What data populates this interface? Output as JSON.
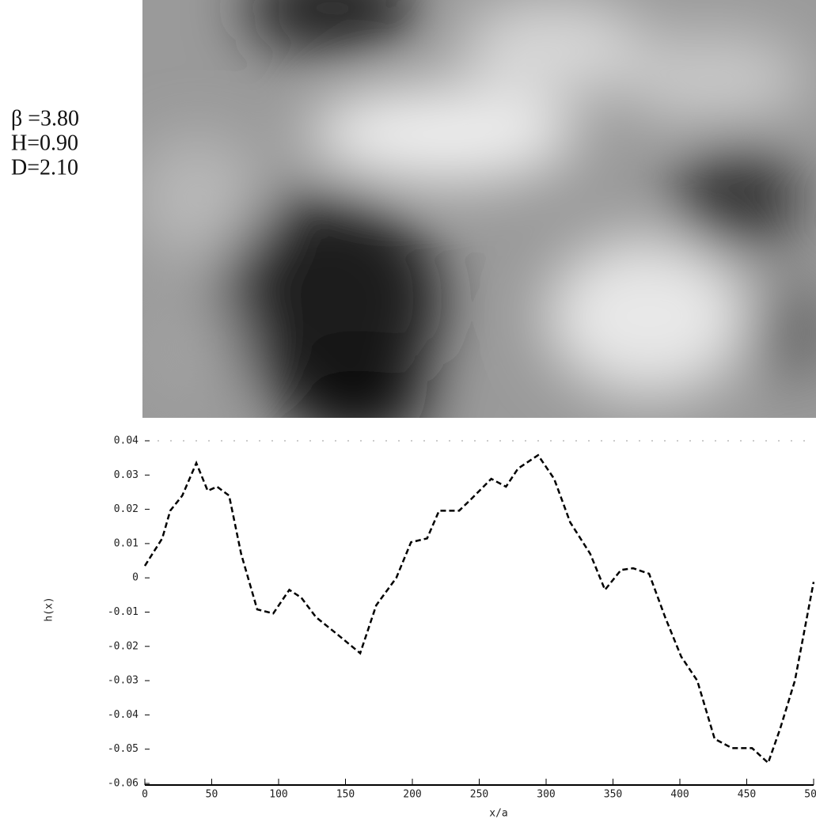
{
  "params": [
    "β =3.80",
    "H=0.90",
    "D=2.10"
  ],
  "chart_data": {
    "type": "line",
    "xlabel": "x/a",
    "ylabel": "h(x)",
    "x": [
      0,
      13,
      19,
      28,
      38.5,
      47,
      54,
      63,
      72,
      84,
      96,
      108,
      117,
      128,
      143,
      161,
      173,
      188,
      199,
      211,
      220,
      235,
      244,
      259,
      270,
      279,
      294,
      306,
      318,
      333,
      344,
      356,
      365,
      377,
      389,
      401,
      413,
      426,
      439,
      454,
      466,
      475,
      486,
      500
    ],
    "series": [
      {
        "name": "h",
        "color": "#000000",
        "values": [
          0.0035,
          0.0115,
          0.0196,
          0.024,
          0.0335,
          0.0254,
          0.0266,
          0.024,
          0.007,
          -0.0092,
          -0.0104,
          -0.0035,
          -0.0058,
          -0.0115,
          -0.0162,
          -0.022,
          -0.008,
          0,
          0.0104,
          0.0115,
          0.0196,
          0.0196,
          0.023,
          0.0289,
          0.0266,
          0.0319,
          0.0358,
          0.0289,
          0.0162,
          0.007,
          -0.0035,
          0.0023,
          0.0028,
          0.0012,
          -0.0115,
          -0.023,
          -0.03,
          -0.047,
          -0.0497,
          -0.0497,
          -0.054,
          -0.044,
          -0.03,
          -0.0012
        ]
      }
    ],
    "xlim": [
      0,
      500
    ],
    "xticks": [
      0,
      50,
      100,
      150,
      200,
      250,
      300,
      350,
      400,
      450,
      500
    ],
    "ylim": [
      -0.06,
      0.04
    ],
    "yticks": [
      -0.06,
      -0.05,
      -0.04,
      -0.03,
      -0.02,
      -0.01,
      0,
      0.01,
      0.02,
      0.03,
      0.04
    ]
  }
}
